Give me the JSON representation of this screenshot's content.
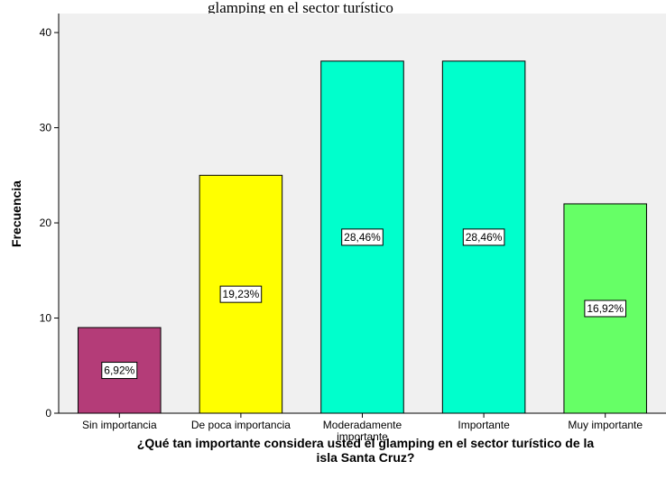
{
  "header": {
    "partial_caption": "glamping en el sector turístico"
  },
  "chart_data": {
    "type": "bar",
    "categories": [
      [
        "Sin importancia"
      ],
      [
        "De poca importancia"
      ],
      [
        "Moderadamente",
        "importante"
      ],
      [
        "Importante"
      ],
      [
        "Muy importante"
      ]
    ],
    "values": [
      9,
      25,
      37,
      37,
      22
    ],
    "data_labels": [
      "6,92%",
      "19,23%",
      "28,46%",
      "28,46%",
      "16,92%"
    ],
    "colors": [
      "#b43c78",
      "#ffff00",
      "#00ffcc",
      "#00ffcc",
      "#66ff66"
    ],
    "plot_background": "#f0f0f0",
    "ylabel": "Frecuencia",
    "xlabel_lines": [
      "¿Qué tan importante considera usted el glamping en el sector turístico de la",
      "isla Santa Cruz?"
    ],
    "ylim": [
      0,
      42
    ],
    "yticks": [
      0,
      10,
      20,
      30,
      40
    ],
    "grid": false,
    "legend": "none"
  }
}
